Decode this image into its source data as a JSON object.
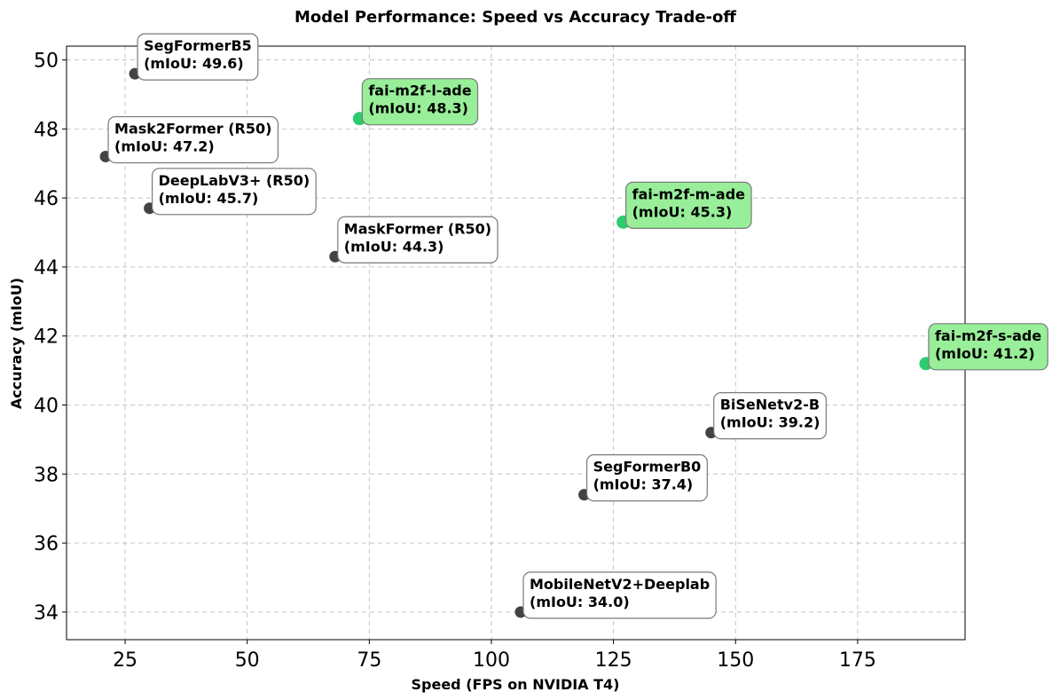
{
  "chart_data": {
    "type": "scatter",
    "title": "Model Performance: Speed vs Accuracy Trade-off",
    "xlabel": "Speed (FPS on NVIDIA T4)",
    "ylabel": "Accuracy (mIoU)",
    "xlim": [
      13,
      197
    ],
    "ylim": [
      33.2,
      50.4
    ],
    "xticks": [
      25,
      50,
      75,
      100,
      125,
      150,
      175
    ],
    "yticks": [
      34,
      36,
      38,
      40,
      42,
      44,
      46,
      48,
      50
    ],
    "grid": true,
    "colors": {
      "baseline_point": "#333333",
      "highlight_point": "#2ecc71",
      "highlight_box": "#98ee99",
      "baseline_box": "#ffffff"
    },
    "points": [
      {
        "model": "SegFormerB5",
        "x": 27,
        "y": 49.6,
        "highlight": false,
        "line1": "SegFormerB5",
        "line2": "(mIoU: 49.6)"
      },
      {
        "model": "fai-m2f-l-ade",
        "x": 73,
        "y": 48.3,
        "highlight": true,
        "line1": "fai-m2f-l-ade",
        "line2": "(mIoU: 48.3)"
      },
      {
        "model": "Mask2Former (R50)",
        "x": 21,
        "y": 47.2,
        "highlight": false,
        "line1": "Mask2Former (R50)",
        "line2": "(mIoU: 47.2)"
      },
      {
        "model": "DeepLabV3+ (R50)",
        "x": 30,
        "y": 45.7,
        "highlight": false,
        "line1": "DeepLabV3+ (R50)",
        "line2": "(mIoU: 45.7)"
      },
      {
        "model": "fai-m2f-m-ade",
        "x": 127,
        "y": 45.3,
        "highlight": true,
        "line1": "fai-m2f-m-ade",
        "line2": "(mIoU: 45.3)"
      },
      {
        "model": "MaskFormer (R50)",
        "x": 68,
        "y": 44.3,
        "highlight": false,
        "line1": "MaskFormer (R50)",
        "line2": "(mIoU: 44.3)"
      },
      {
        "model": "fai-m2f-s-ade",
        "x": 189,
        "y": 41.2,
        "highlight": true,
        "line1": "fai-m2f-s-ade",
        "line2": "(mIoU: 41.2)"
      },
      {
        "model": "BiSeNetv2-B",
        "x": 145,
        "y": 39.2,
        "highlight": false,
        "line1": "BiSeNetv2-B",
        "line2": "(mIoU: 39.2)"
      },
      {
        "model": "SegFormerB0",
        "x": 119,
        "y": 37.4,
        "highlight": false,
        "line1": "SegFormerB0",
        "line2": "(mIoU: 37.4)"
      },
      {
        "model": "MobileNetV2+Deeplab",
        "x": 106,
        "y": 34.0,
        "highlight": false,
        "line1": "MobileNetV2+Deeplab",
        "line2": "(mIoU: 34.0)"
      }
    ]
  }
}
